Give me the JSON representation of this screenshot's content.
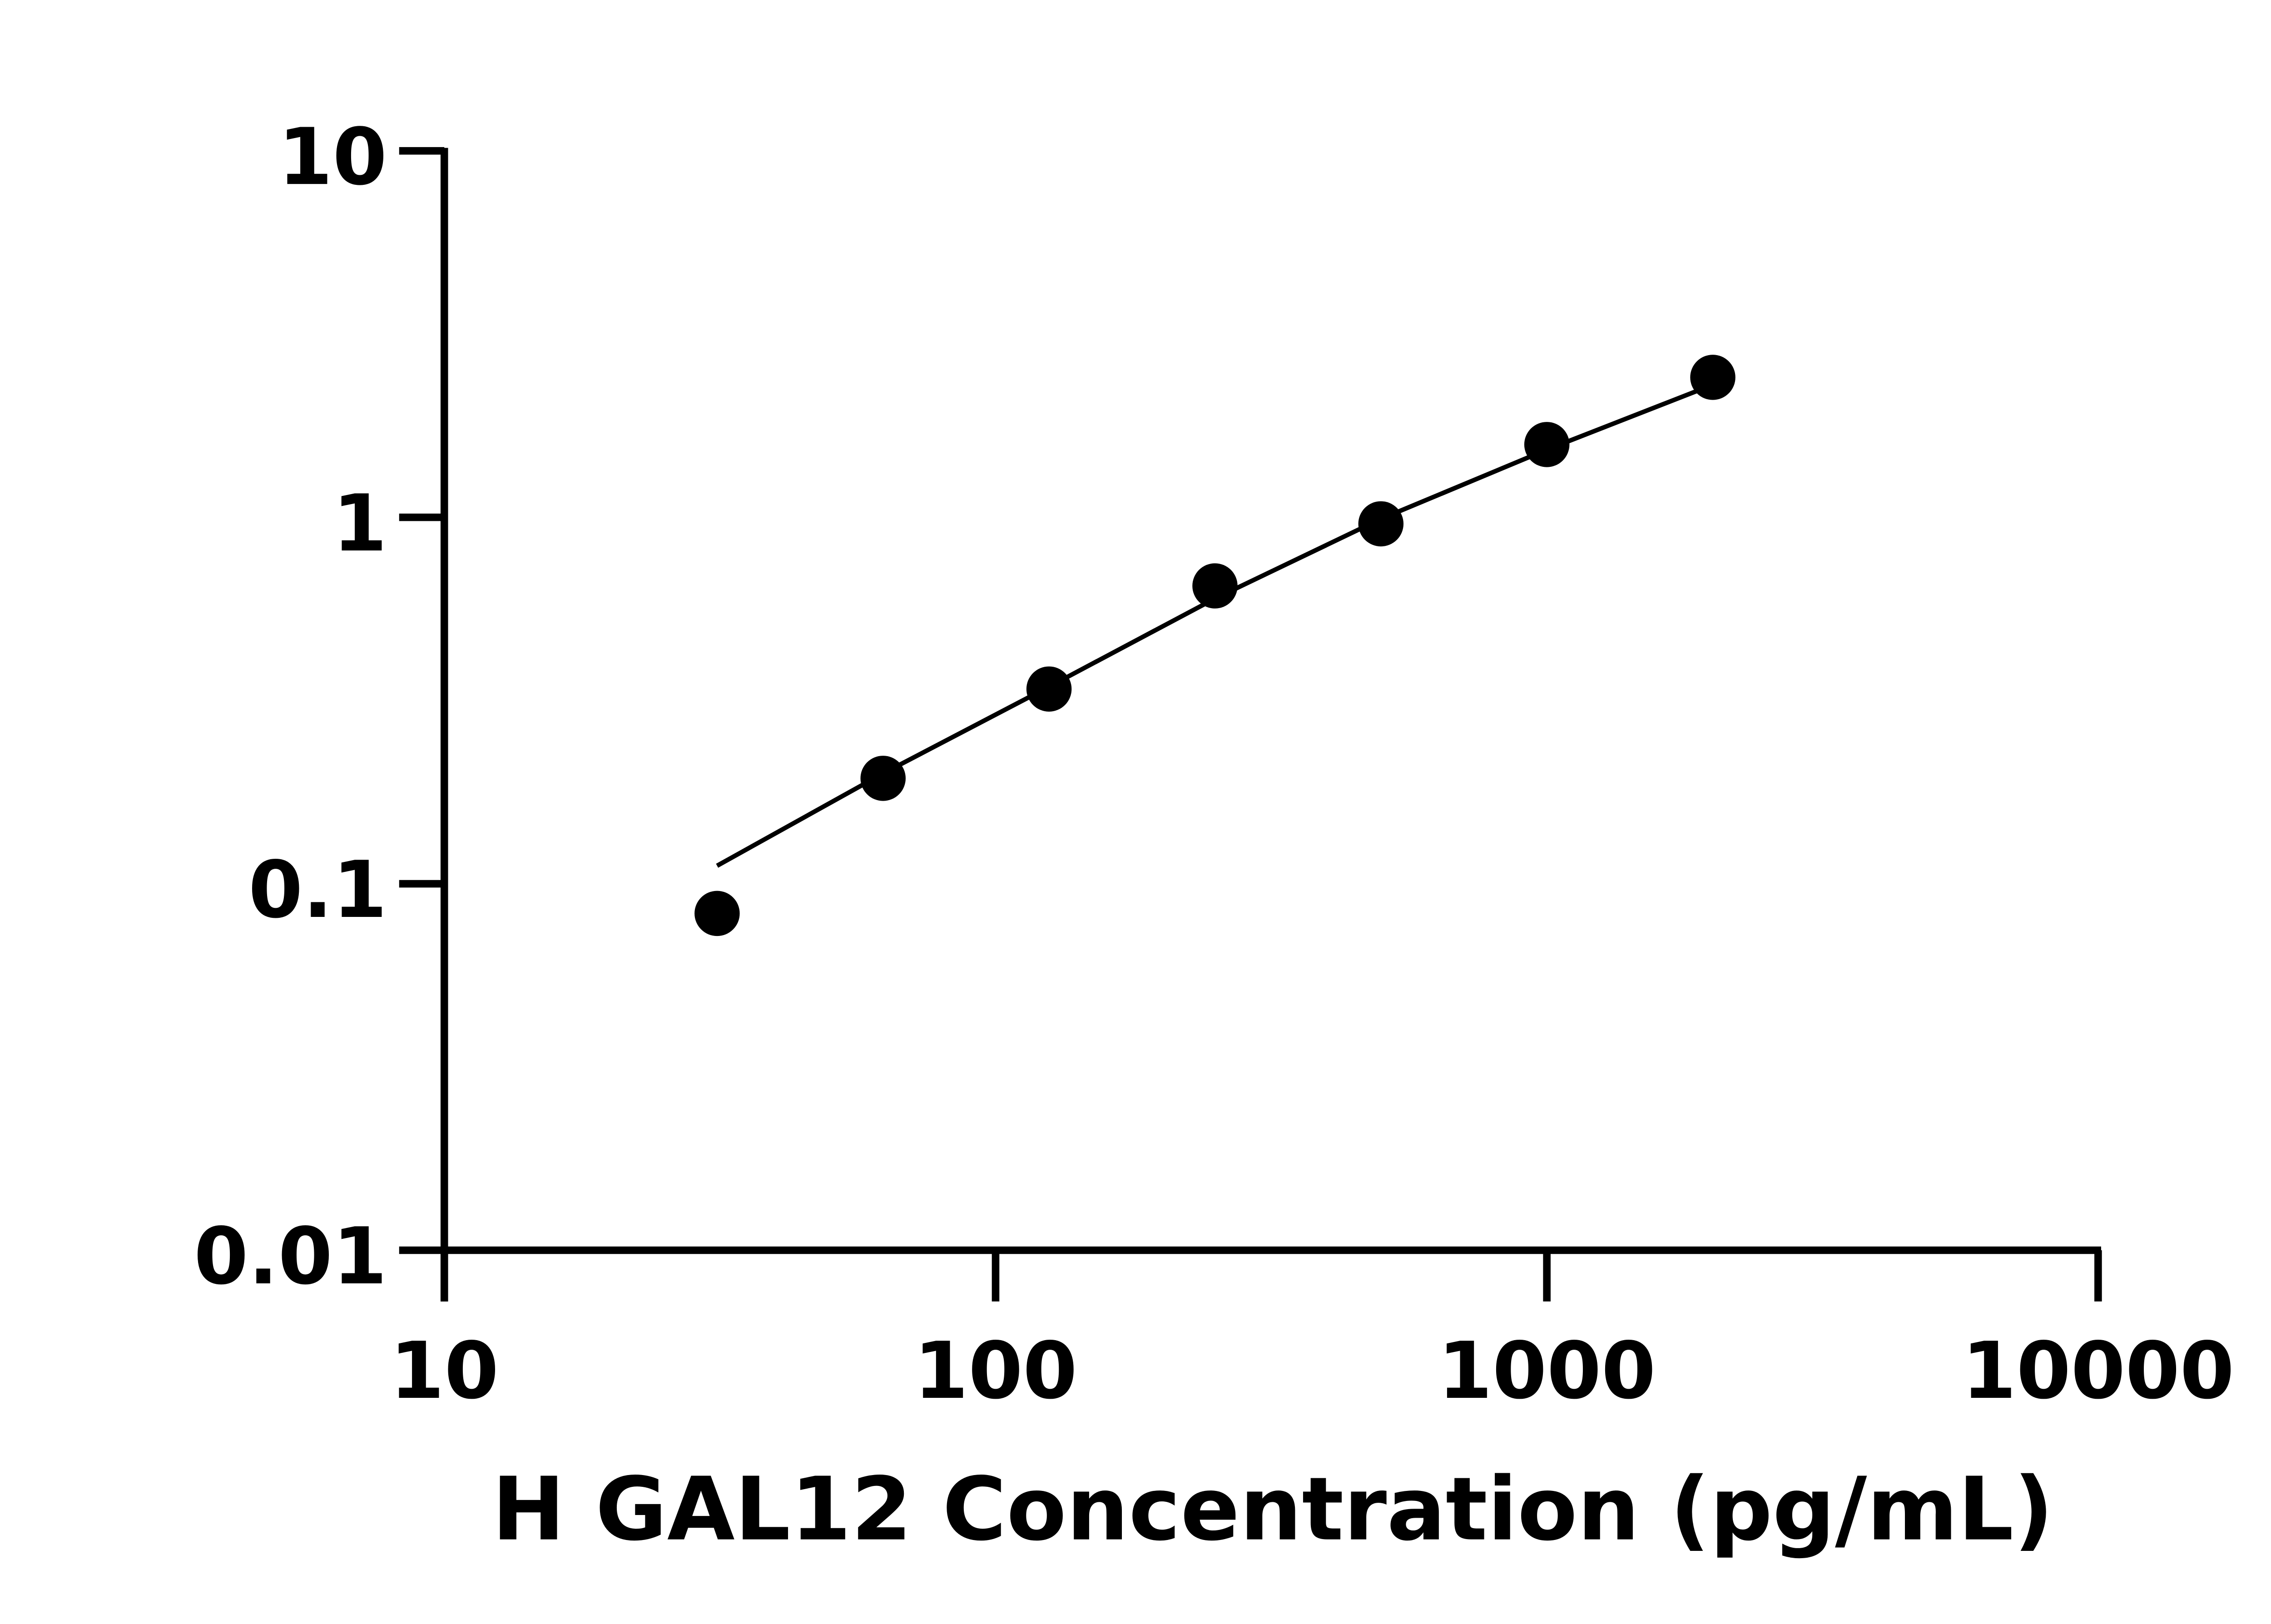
{
  "chart_data": {
    "type": "scatter",
    "title": "",
    "xlabel": "H GAL12 Concentration (pg/mL)",
    "ylabel": "",
    "xscale": "log",
    "yscale": "log",
    "xlim": [
      10,
      10000
    ],
    "ylim": [
      0.01,
      10
    ],
    "x_ticks": [
      "10",
      "100",
      "1000",
      "10000"
    ],
    "y_ticks": [
      "0.01",
      "0.1",
      "1",
      "10"
    ],
    "grid": false,
    "legend": "none",
    "colors": {
      "points": "#000000",
      "curve": "#000000"
    },
    "series": [
      {
        "x": [
          31.25,
          62.5,
          125,
          250,
          500,
          1000,
          2000
        ],
        "y": [
          0.083,
          0.194,
          0.34,
          0.65,
          0.96,
          1.58,
          2.41
        ]
      }
    ],
    "fit_curve": {
      "x": [
        31.25,
        62.5,
        125,
        250,
        500,
        1000,
        2000
      ],
      "y": [
        0.112,
        0.2,
        0.345,
        0.6,
        0.99,
        1.53,
        2.3
      ]
    }
  }
}
